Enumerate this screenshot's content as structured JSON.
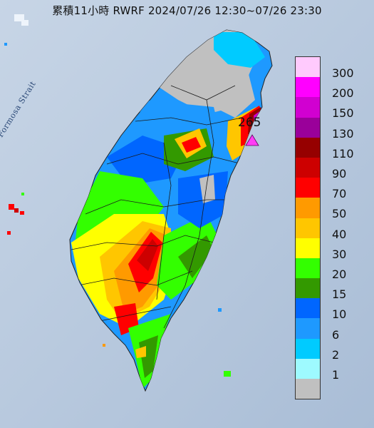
{
  "title": "累積11小時 RWRF 2024/07/26 12:30~07/26 23:30",
  "strait_label": "Formosa Strait",
  "max_value_label": "265",
  "legend": [
    {
      "label": "300",
      "color": "#ffcafd"
    },
    {
      "label": "200",
      "color": "#ff00ff"
    },
    {
      "label": "150",
      "color": "#d100d1"
    },
    {
      "label": "130",
      "color": "#9a009a"
    },
    {
      "label": "110",
      "color": "#960000"
    },
    {
      "label": "90",
      "color": "#cd0000"
    },
    {
      "label": "70",
      "color": "#ff0000"
    },
    {
      "label": "50",
      "color": "#ff9a00"
    },
    {
      "label": "40",
      "color": "#ffc600"
    },
    {
      "label": "30",
      "color": "#ffff00"
    },
    {
      "label": "20",
      "color": "#33ff00"
    },
    {
      "label": "15",
      "color": "#339900"
    },
    {
      "label": "10",
      "color": "#0066ff"
    },
    {
      "label": "6",
      "color": "#1e99ff"
    },
    {
      "label": "2",
      "color": "#00cbff"
    },
    {
      "label": "1",
      "color": "#9efaff"
    },
    {
      "label": "",
      "color": "#c0c0c0"
    }
  ]
}
